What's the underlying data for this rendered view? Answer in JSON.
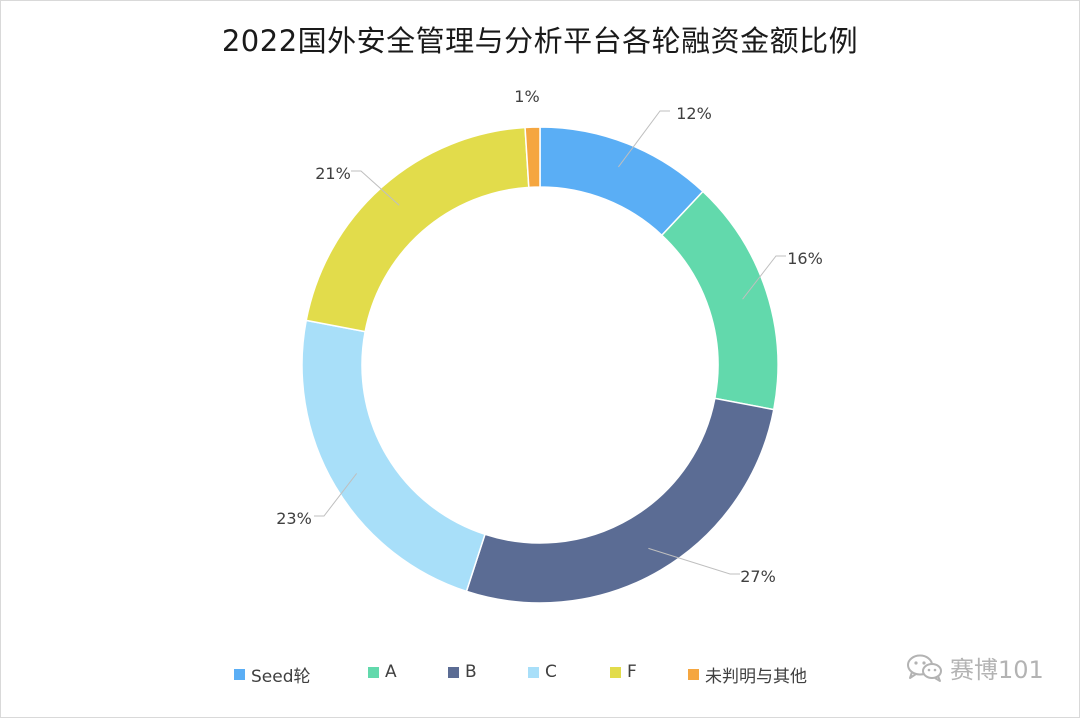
{
  "chart_data": {
    "type": "donut",
    "title": "2022国外安全管理与分析平台各轮融资金额比例",
    "categories": [
      "Seed轮",
      "A",
      "B",
      "C",
      "F",
      "未判明与其他"
    ],
    "values": [
      12,
      16,
      27,
      23,
      21,
      1
    ],
    "labels": [
      "12%",
      "16%",
      "27%",
      "23%",
      "21%",
      "1%"
    ],
    "colors": [
      "#5aaef5",
      "#62d9ac",
      "#5b6c94",
      "#a8dff9",
      "#e2dc4b",
      "#f5a640"
    ],
    "legend_position": "bottom"
  },
  "watermark": {
    "text": "赛博101",
    "icon": "wechat-icon"
  }
}
